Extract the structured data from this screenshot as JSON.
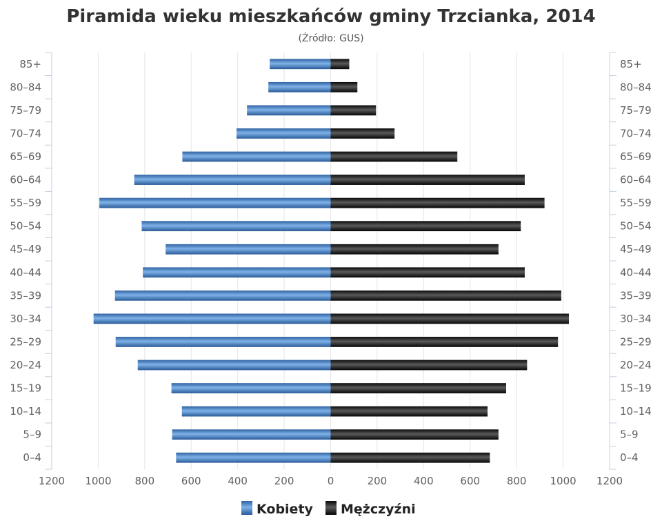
{
  "chart_data": {
    "type": "bar",
    "orientation": "horizontal",
    "title": "Piramida wieku mieszkańców gminy Trzcianka, 2014",
    "subtitle": "(Źródło: GUS)",
    "categories": [
      "0–4",
      "5–9",
      "10–14",
      "15–19",
      "20–24",
      "25–29",
      "30–34",
      "35–39",
      "40–44",
      "45–49",
      "50–54",
      "55–59",
      "60–64",
      "65–69",
      "70–74",
      "75–79",
      "80–84",
      "85+"
    ],
    "series": [
      {
        "name": "Kobiety",
        "color": "#4a86c8",
        "side": "left",
        "values": [
          665,
          682,
          640,
          685,
          830,
          925,
          1020,
          928,
          808,
          710,
          813,
          995,
          845,
          638,
          405,
          360,
          268,
          262
        ]
      },
      {
        "name": "Mężczyźni",
        "color": "#1e1e1e",
        "side": "right",
        "values": [
          685,
          722,
          675,
          755,
          845,
          978,
          1025,
          992,
          835,
          722,
          818,
          920,
          835,
          545,
          275,
          195,
          115,
          80
        ]
      }
    ],
    "xticks": [
      "1200",
      "1000",
      "800",
      "600",
      "400",
      "200",
      "0",
      "200",
      "400",
      "600",
      "800",
      "1000",
      "1200"
    ],
    "xlim": [
      -1200,
      1200
    ],
    "grid": true,
    "legend": "bottom-center"
  }
}
